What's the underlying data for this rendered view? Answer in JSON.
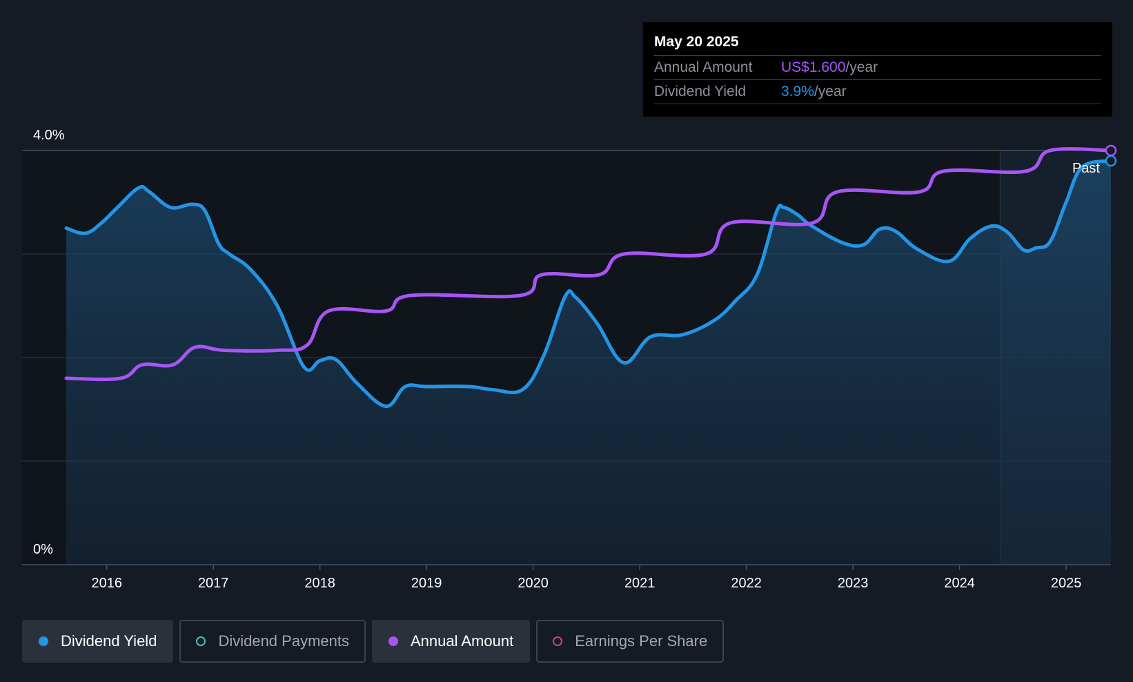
{
  "tooltip": {
    "date": "May 20 2025",
    "rows": [
      {
        "label": "Annual Amount",
        "value": "US$1.600",
        "suffix": "/year",
        "color": "#a855f7"
      },
      {
        "label": "Dividend Yield",
        "value": "3.9%",
        "suffix": "/year",
        "color": "#2394e6"
      }
    ]
  },
  "legend": [
    {
      "label": "Dividend Yield",
      "color": "#2394e6",
      "active": true
    },
    {
      "label": "Dividend Payments",
      "color": "#3fc6b8",
      "active": false
    },
    {
      "label": "Annual Amount",
      "color": "#a855f7",
      "active": true
    },
    {
      "label": "Earnings Per Share",
      "color": "#d0457e",
      "active": false
    }
  ],
  "chart_data": {
    "type": "line",
    "y_tick_labels": [
      "4.0%",
      "0%"
    ],
    "ylim": [
      0,
      4.0
    ],
    "xlim": [
      2015.25,
      2025.42
    ],
    "x_tick_labels": [
      "2016",
      "2017",
      "2018",
      "2019",
      "2020",
      "2021",
      "2022",
      "2023",
      "2024",
      "2025"
    ],
    "x_ticks": [
      2016,
      2017,
      2018,
      2019,
      2020,
      2021,
      2022,
      2023,
      2024,
      2025
    ],
    "past_label": "Past",
    "past_region_start": 2024.38,
    "grid": true,
    "series": [
      {
        "name": "Dividend Yield",
        "color": "#2394e6",
        "fill": true,
        "x": [
          2015.62,
          2015.8,
          2015.95,
          2016.1,
          2016.3,
          2016.4,
          2016.6,
          2016.8,
          2016.92,
          2017.05,
          2017.15,
          2017.35,
          2017.6,
          2017.85,
          2018.0,
          2018.15,
          2018.35,
          2018.62,
          2018.8,
          2019.0,
          2019.4,
          2019.62,
          2019.9,
          2020.1,
          2020.3,
          2020.4,
          2020.6,
          2020.85,
          2021.1,
          2021.4,
          2021.7,
          2021.9,
          2022.1,
          2022.28,
          2022.35,
          2022.48,
          2022.6,
          2022.9,
          2023.1,
          2023.25,
          2023.4,
          2023.6,
          2023.9,
          2024.1,
          2024.3,
          2024.45,
          2024.6,
          2024.72,
          2024.85,
          2025.0,
          2025.15,
          2025.42
        ],
        "y": [
          3.25,
          3.2,
          3.3,
          3.45,
          3.64,
          3.6,
          3.45,
          3.48,
          3.42,
          3.1,
          3.0,
          2.85,
          2.5,
          1.91,
          1.97,
          1.98,
          1.75,
          1.53,
          1.72,
          1.72,
          1.72,
          1.69,
          1.69,
          2.02,
          2.59,
          2.58,
          2.33,
          1.95,
          2.2,
          2.22,
          2.36,
          2.55,
          2.8,
          3.4,
          3.45,
          3.38,
          3.28,
          3.11,
          3.09,
          3.24,
          3.22,
          3.05,
          2.93,
          3.15,
          3.27,
          3.21,
          3.04,
          3.06,
          3.12,
          3.5,
          3.84,
          3.9
        ]
      },
      {
        "name": "Annual Amount",
        "color": "#a855f7",
        "fill": false,
        "x": [
          2015.62,
          2016.13,
          2016.33,
          2016.62,
          2016.83,
          2017.1,
          2017.6,
          2017.88,
          2018.08,
          2018.62,
          2018.85,
          2019.88,
          2020.08,
          2020.62,
          2020.85,
          2021.62,
          2021.85,
          2022.62,
          2022.85,
          2023.62,
          2023.85,
          2024.62,
          2024.85,
          2025.42
        ],
        "y": [
          1.8,
          1.8,
          1.93,
          1.93,
          2.1,
          2.07,
          2.07,
          2.12,
          2.45,
          2.45,
          2.6,
          2.6,
          2.8,
          2.8,
          3.0,
          3.0,
          3.3,
          3.3,
          3.6,
          3.6,
          3.8,
          3.8,
          4.0,
          4.0
        ]
      }
    ]
  }
}
